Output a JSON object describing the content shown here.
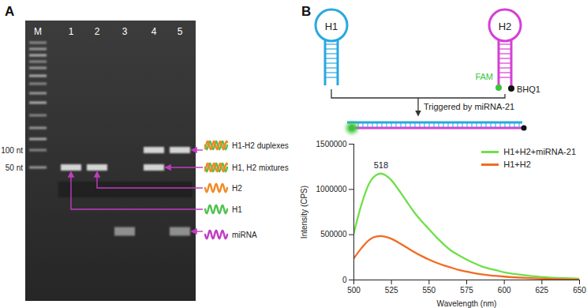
{
  "gel": {
    "label": "A",
    "lanes": [
      {
        "label": "M"
      },
      {
        "label": "1",
        "bands": [
          "H1"
        ]
      },
      {
        "label": "2",
        "bands": [
          "H2"
        ]
      },
      {
        "label": "3",
        "bands": [
          "miRNA"
        ]
      },
      {
        "label": "4",
        "bands": [
          "H1-H2 duplexes",
          "H1, H2 mixtures"
        ]
      },
      {
        "label": "5",
        "bands": [
          "H1-H2 duplexes",
          "miRNA"
        ]
      }
    ],
    "markers": [
      {
        "label": "100 nt"
      },
      {
        "label": "50 nt"
      }
    ],
    "annotations": [
      {
        "label": "H1-H2 duplexes",
        "size": "100 nt",
        "colors": [
          "#4ec24e",
          "#f08a24"
        ]
      },
      {
        "label": "H1, H2 mixtures",
        "size": "50 nt",
        "colors": [
          "#4ec24e",
          "#f08a24"
        ]
      },
      {
        "label": "H2",
        "size": "50 nt",
        "colors": [
          "#f08a24"
        ]
      },
      {
        "label": "H1",
        "size": "50 nt",
        "colors": [
          "#4ec24e"
        ]
      },
      {
        "label": "miRNA",
        "colors": [
          "#c03cc0"
        ]
      }
    ]
  },
  "schematic": {
    "label": "B",
    "hairpins": [
      {
        "label": "H1",
        "color": "#29a8e0"
      },
      {
        "label": "H2",
        "color": "#d63fd6"
      }
    ],
    "fluorophore": {
      "label": "FAM",
      "color": "#3cc43c"
    },
    "quencher": {
      "label": "BHQ1",
      "color": "#111111"
    },
    "trigger": "Triggered by miRNA-21"
  },
  "chart_data": {
    "type": "line",
    "x_label": "Wavelength (nm)",
    "y_label": "Intensity (CPS)",
    "x": [
      500,
      505,
      510,
      515,
      518,
      520,
      525,
      530,
      535,
      540,
      545,
      550,
      555,
      560,
      565,
      570,
      575,
      580,
      585,
      590,
      595,
      600,
      610,
      620,
      630,
      640,
      650
    ],
    "series": [
      {
        "name": "H1+H2+miRNA-21",
        "color": "#6ee04a",
        "values": [
          520000,
          830000,
          1060000,
          1160000,
          1175000,
          1165000,
          1100000,
          990000,
          870000,
          750000,
          650000,
          560000,
          470000,
          390000,
          320000,
          270000,
          225000,
          185000,
          150000,
          125000,
          105000,
          85000,
          60000,
          40000,
          28000,
          20000,
          14000
        ]
      },
      {
        "name": "H1+H2",
        "color": "#f26b21",
        "values": [
          240000,
          350000,
          440000,
          480000,
          485000,
          480000,
          455000,
          410000,
          360000,
          310000,
          265000,
          225000,
          190000,
          160000,
          135000,
          110000,
          92000,
          76000,
          62000,
          52000,
          44000,
          37000,
          26000,
          18000,
          12000,
          8000,
          5000
        ]
      }
    ],
    "annotations": [
      {
        "text": "518",
        "x": 518,
        "y": 1175000
      }
    ],
    "xlim": [
      500,
      650
    ],
    "xticks": [
      500,
      525,
      550,
      575,
      600,
      625,
      650
    ],
    "ylim": [
      0,
      1500000
    ],
    "yticks": [
      0,
      500000,
      1000000,
      1500000
    ],
    "grid": false,
    "legend": "upper right"
  }
}
